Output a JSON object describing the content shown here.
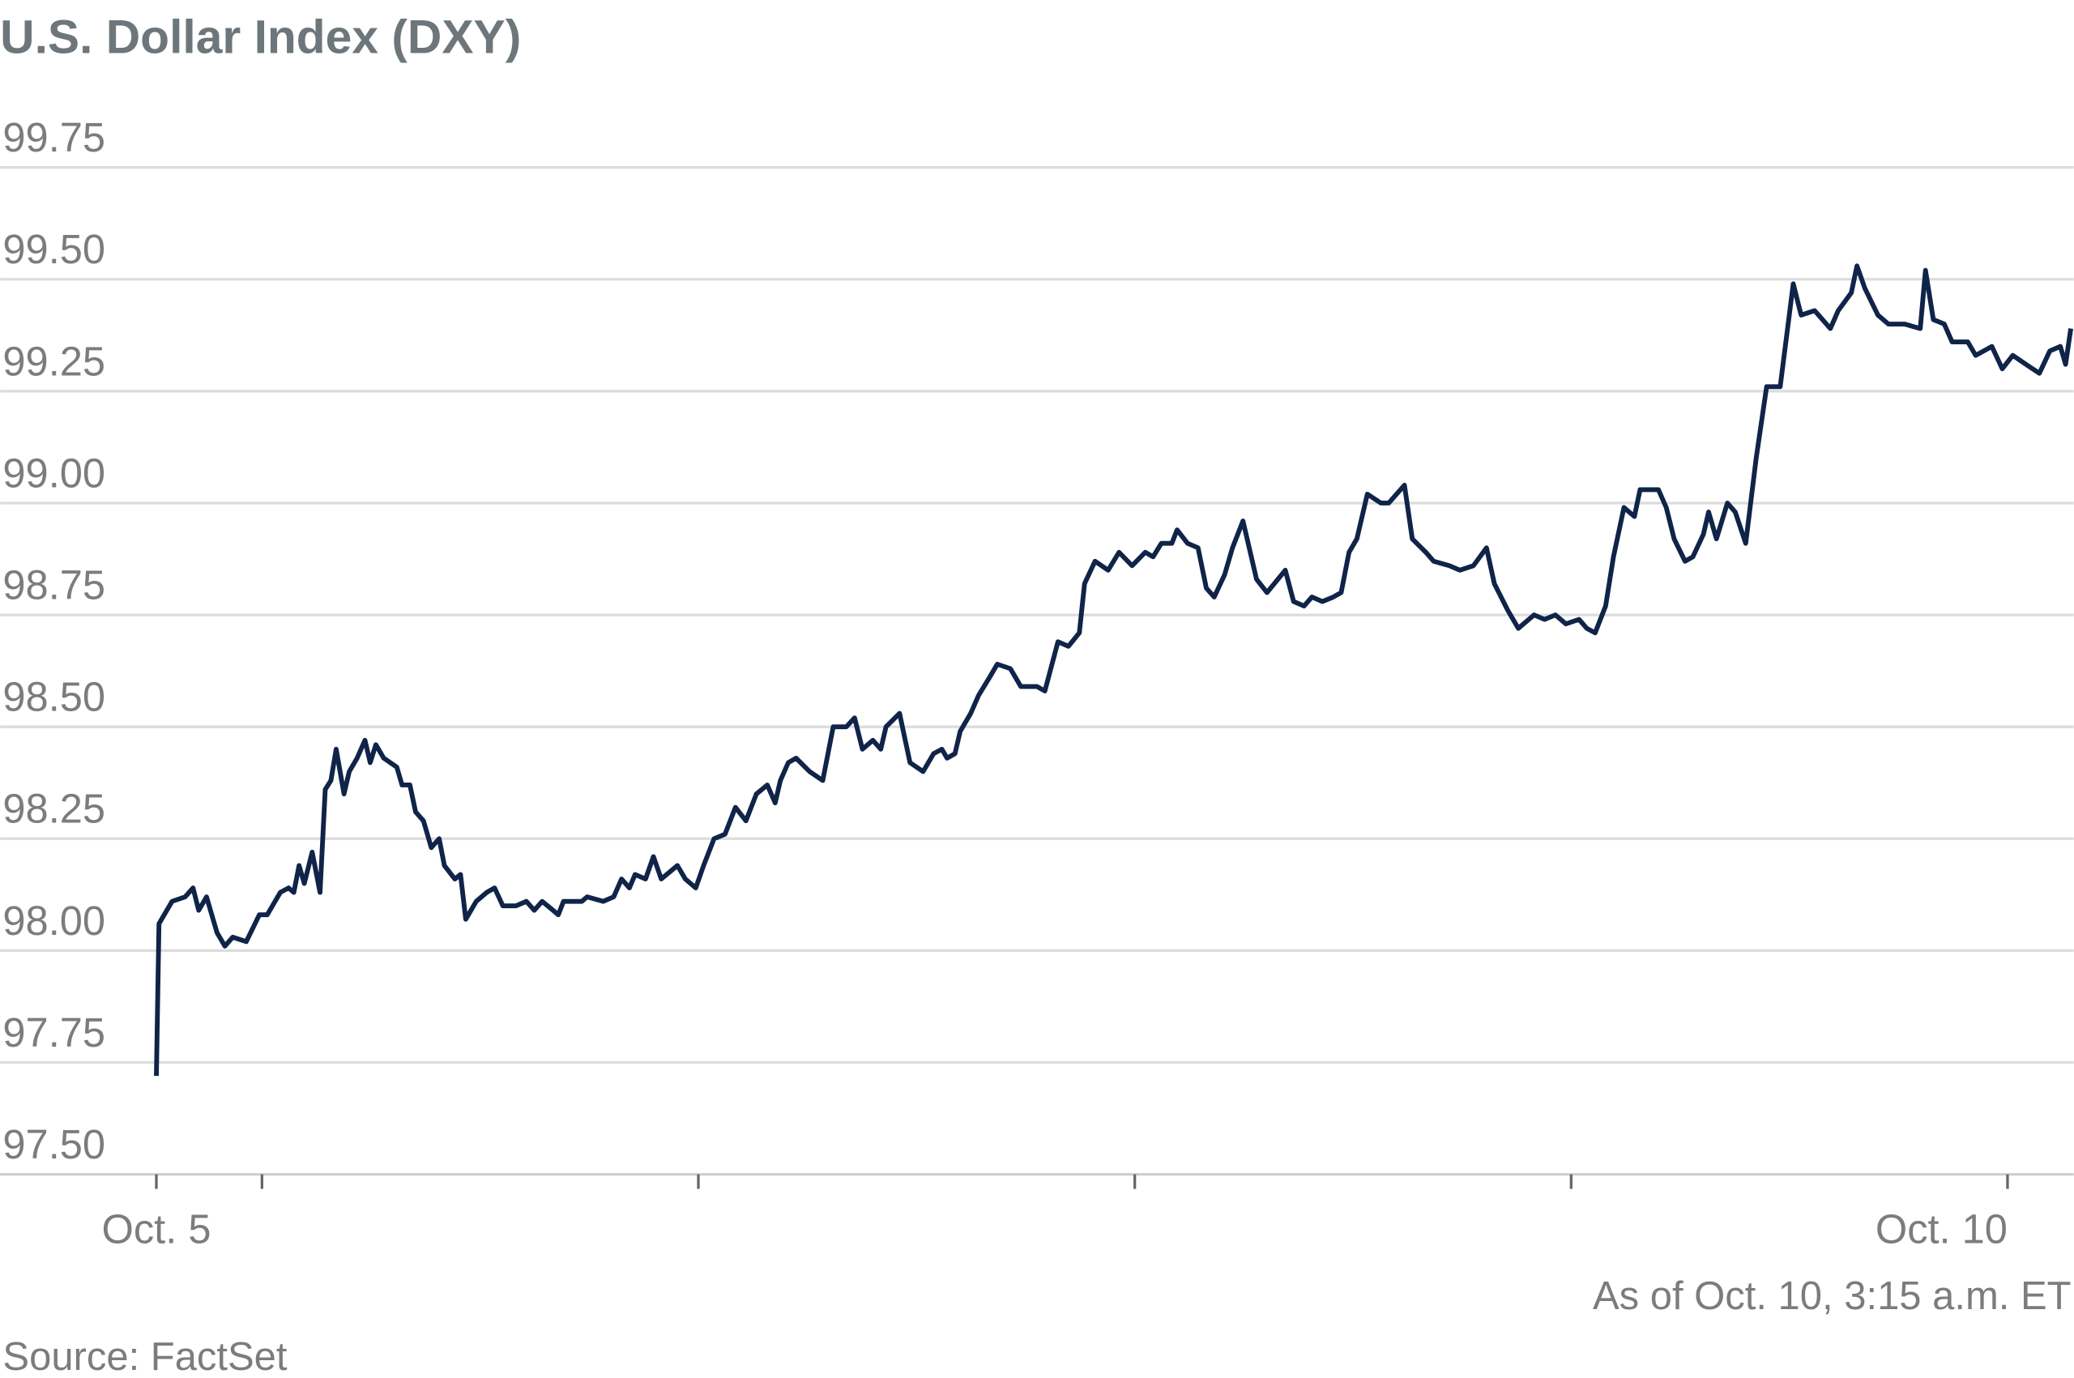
{
  "chart_data": {
    "type": "line",
    "title": "U.S. Dollar Index (DXY)",
    "annotation": "As of Oct. 10, 3:15 a.m. ET",
    "source": "Source: FactSet",
    "color": "#0f2448",
    "grid": true,
    "xlim": [
      5.4,
      10.152
    ],
    "xticks": [
      {
        "value": 5.758,
        "label": "Oct. 5"
      },
      {
        "value": 10,
        "label": "Oct. 10"
      }
    ],
    "xminor_ticks": [
      6,
      7,
      8,
      9
    ],
    "ylim": [
      97.5,
      99.75
    ],
    "yticks": [
      {
        "value": 97.5,
        "label": "97.50"
      },
      97.75,
      {
        "value": 98,
        "label": "98.00"
      },
      98.25,
      {
        "value": 98.5,
        "label": "98.50"
      },
      98.75,
      {
        "value": 99,
        "label": "99.00"
      },
      99.25,
      {
        "value": 99.5,
        "label": "99.50"
      },
      99.75
    ],
    "x": [
      5.758,
      5.764,
      5.794,
      5.824,
      5.842,
      5.855,
      5.873,
      5.897,
      5.915,
      5.933,
      5.964,
      5.994,
      6.012,
      6.042,
      6.061,
      6.073,
      6.085,
      6.097,
      6.115,
      6.133,
      6.145,
      6.158,
      6.17,
      6.188,
      6.2,
      6.218,
      6.236,
      6.248,
      6.261,
      6.279,
      6.309,
      6.321,
      6.339,
      6.352,
      6.37,
      6.388,
      6.406,
      6.418,
      6.442,
      6.455,
      6.467,
      6.491,
      6.515,
      6.533,
      6.552,
      6.582,
      6.606,
      6.624,
      6.642,
      6.667,
      6.679,
      6.691,
      6.733,
      6.745,
      6.782,
      6.806,
      6.824,
      6.842,
      6.855,
      6.879,
      6.897,
      6.915,
      6.952,
      6.97,
      6.994,
      7.012,
      7.036,
      7.061,
      7.085,
      7.109,
      7.133,
      7.158,
      7.176,
      7.188,
      7.206,
      7.224,
      7.255,
      7.285,
      7.309,
      7.339,
      7.358,
      7.376,
      7.4,
      7.418,
      7.43,
      7.461,
      7.485,
      7.515,
      7.539,
      7.558,
      7.57,
      7.588,
      7.6,
      7.624,
      7.642,
      7.667,
      7.685,
      7.715,
      7.739,
      7.776,
      7.794,
      7.824,
      7.848,
      7.873,
      7.885,
      7.909,
      7.939,
      7.964,
      7.994,
      8.024,
      8.042,
      8.061,
      8.085,
      8.097,
      8.121,
      8.145,
      8.164,
      8.182,
      8.206,
      8.224,
      8.248,
      8.279,
      8.303,
      8.345,
      8.364,
      8.388,
      8.406,
      8.43,
      8.455,
      8.473,
      8.491,
      8.509,
      8.533,
      8.564,
      8.582,
      8.618,
      8.636,
      8.667,
      8.685,
      8.721,
      8.745,
      8.776,
      8.806,
      8.824,
      8.855,
      8.879,
      8.915,
      8.939,
      8.964,
      8.988,
      9.018,
      9.036,
      9.055,
      9.079,
      9.097,
      9.121,
      9.145,
      9.158,
      9.2,
      9.218,
      9.236,
      9.261,
      9.279,
      9.303,
      9.315,
      9.333,
      9.358,
      9.376,
      9.4,
      9.424,
      9.448,
      9.479,
      9.509,
      9.527,
      9.558,
      9.594,
      9.612,
      9.642,
      9.655,
      9.673,
      9.703,
      9.727,
      9.764,
      9.8,
      9.812,
      9.83,
      9.855,
      9.873,
      9.909,
      9.927,
      9.964,
      9.988,
      10.012,
      10.042,
      10.073,
      10.097,
      10.121,
      10.133,
      10.145
    ],
    "values": [
      97.72,
      98.06,
      98.11,
      98.12,
      98.14,
      98.09,
      98.12,
      98.04,
      98.01,
      98.03,
      98.02,
      98.08,
      98.08,
      98.13,
      98.14,
      98.13,
      98.19,
      98.15,
      98.22,
      98.13,
      98.36,
      98.38,
      98.45,
      98.35,
      98.4,
      98.43,
      98.47,
      98.42,
      98.46,
      98.43,
      98.41,
      98.37,
      98.37,
      98.31,
      98.29,
      98.23,
      98.25,
      98.19,
      98.16,
      98.17,
      98.07,
      98.11,
      98.13,
      98.14,
      98.1,
      98.1,
      98.11,
      98.09,
      98.11,
      98.09,
      98.08,
      98.11,
      98.11,
      98.12,
      98.11,
      98.12,
      98.16,
      98.14,
      98.17,
      98.16,
      98.21,
      98.16,
      98.19,
      98.16,
      98.14,
      98.19,
      98.25,
      98.26,
      98.32,
      98.29,
      98.35,
      98.37,
      98.33,
      98.38,
      98.42,
      98.43,
      98.4,
      98.38,
      98.5,
      98.5,
      98.52,
      98.45,
      98.47,
      98.45,
      98.5,
      98.53,
      98.42,
      98.4,
      98.44,
      98.45,
      98.43,
      98.44,
      98.49,
      98.53,
      98.57,
      98.61,
      98.64,
      98.63,
      98.59,
      98.59,
      98.58,
      98.69,
      98.68,
      98.71,
      98.82,
      98.87,
      98.85,
      98.89,
      98.86,
      98.89,
      98.88,
      98.91,
      98.91,
      98.94,
      98.91,
      98.9,
      98.81,
      98.79,
      98.84,
      98.9,
      98.96,
      98.83,
      98.8,
      98.85,
      98.78,
      98.77,
      98.79,
      98.78,
      98.79,
      98.8,
      98.89,
      98.92,
      99.02,
      99.0,
      99.0,
      99.04,
      98.92,
      98.89,
      98.87,
      98.86,
      98.85,
      98.86,
      98.9,
      98.82,
      98.76,
      98.72,
      98.75,
      98.74,
      98.75,
      98.73,
      98.74,
      98.72,
      98.71,
      98.77,
      98.88,
      98.99,
      98.97,
      99.03,
      99.03,
      98.99,
      98.92,
      98.87,
      98.88,
      98.93,
      98.98,
      98.92,
      99.0,
      98.98,
      98.91,
      99.1,
      99.26,
      99.26,
      99.49,
      99.42,
      99.43,
      99.39,
      99.43,
      99.47,
      99.53,
      99.48,
      99.42,
      99.4,
      99.4,
      99.39,
      99.52,
      99.41,
      99.4,
      99.36,
      99.36,
      99.33,
      99.35,
      99.3,
      99.33,
      99.31,
      99.29,
      99.34,
      99.35,
      99.31,
      99.39
    ]
  }
}
